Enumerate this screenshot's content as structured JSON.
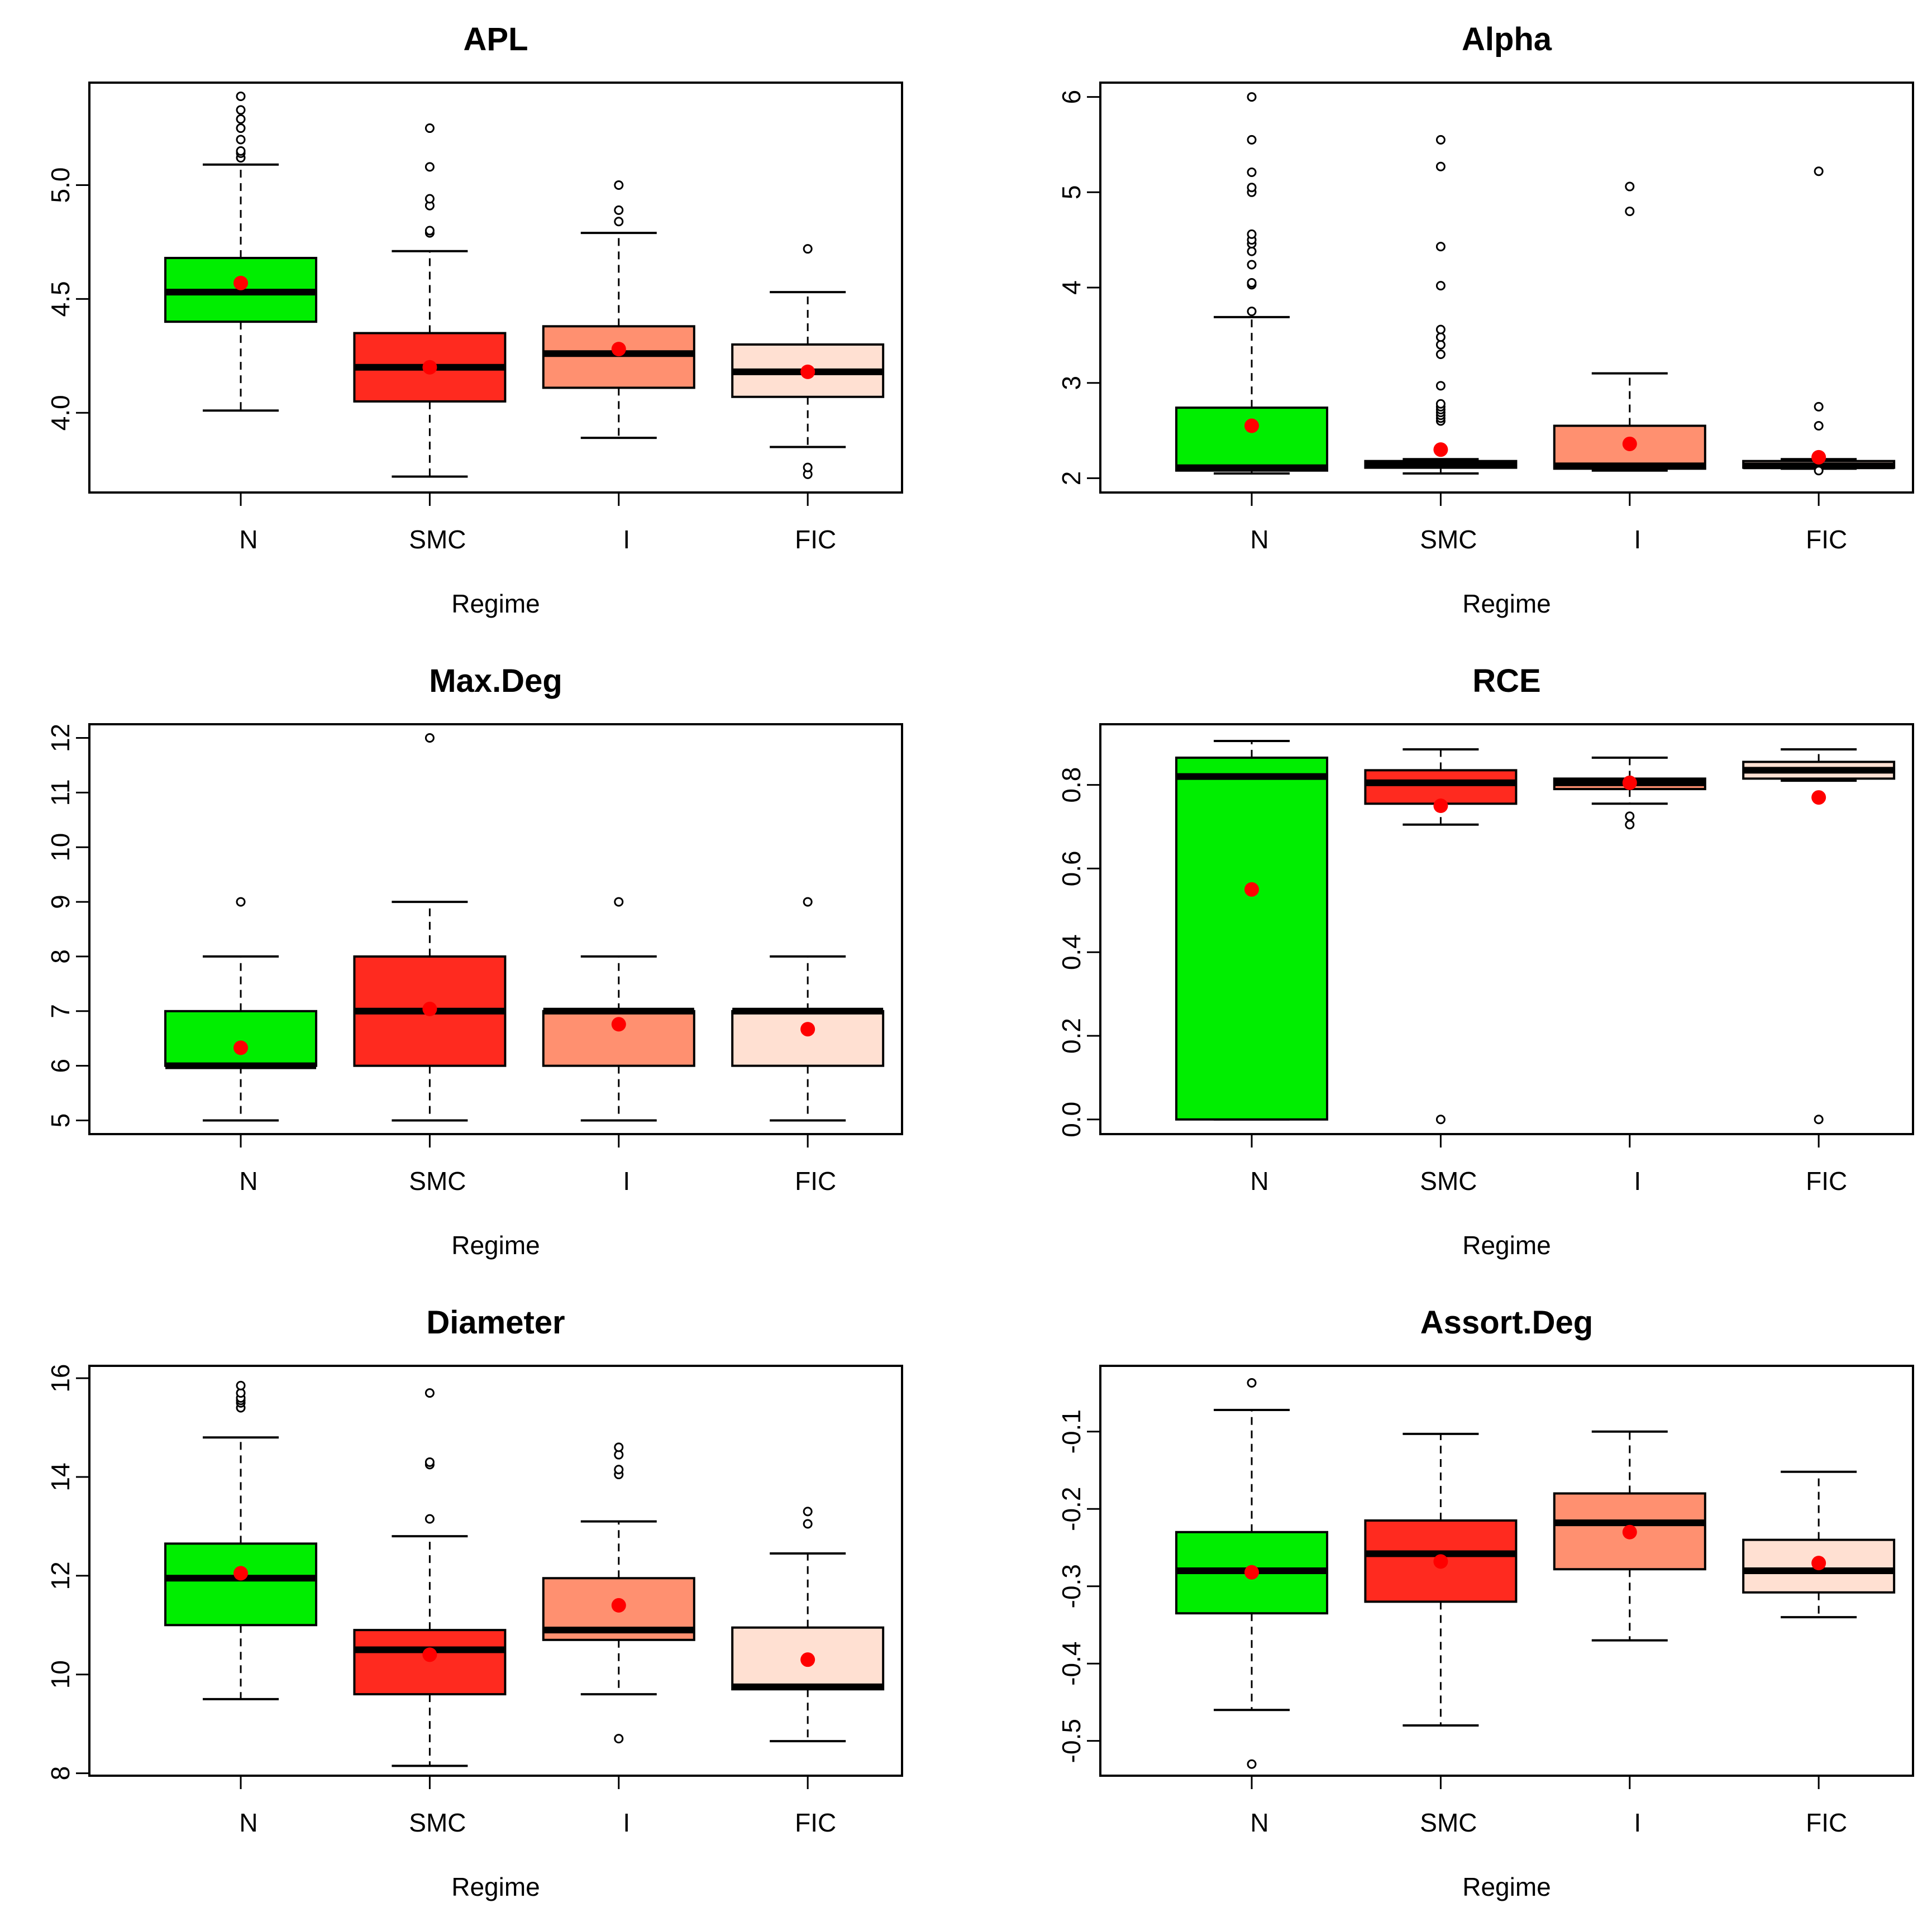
{
  "chart_data": [
    {
      "type": "box",
      "title": "APL",
      "xlabel": "Regime",
      "ylabel": "",
      "categories": [
        "N",
        "SMC",
        "I",
        "FIC"
      ],
      "ylim": [
        3.65,
        5.45
      ],
      "yticks": [
        {
          "v": 4.0,
          "label": "4.0"
        },
        {
          "v": 4.5,
          "label": "4.5"
        },
        {
          "v": 5.0,
          "label": "5.0"
        }
      ],
      "boxes": [
        {
          "min": 4.01,
          "q1": 4.4,
          "median": 4.53,
          "q3": 4.68,
          "max": 5.09,
          "mean": 4.57,
          "outliers": [
            5.12,
            5.14,
            5.15,
            5.2,
            5.25,
            5.29,
            5.33,
            5.39
          ]
        },
        {
          "min": 3.72,
          "q1": 4.05,
          "median": 4.2,
          "q3": 4.35,
          "max": 4.71,
          "mean": 4.2,
          "outliers": [
            4.79,
            4.8,
            4.91,
            4.94,
            5.08,
            5.25
          ]
        },
        {
          "min": 3.89,
          "q1": 4.11,
          "median": 4.26,
          "q3": 4.38,
          "max": 4.79,
          "mean": 4.28,
          "outliers": [
            4.84,
            4.89,
            5.0
          ]
        },
        {
          "min": 3.85,
          "q1": 4.07,
          "median": 4.18,
          "q3": 4.3,
          "max": 4.53,
          "mean": 4.18,
          "outliers": [
            3.73,
            3.76,
            4.72
          ]
        }
      ]
    },
    {
      "type": "box",
      "title": "Alpha",
      "xlabel": "Regime",
      "ylabel": "",
      "categories": [
        "N",
        "SMC",
        "I",
        "FIC"
      ],
      "ylim": [
        1.85,
        6.15
      ],
      "yticks": [
        {
          "v": 2,
          "label": "2"
        },
        {
          "v": 3,
          "label": "3"
        },
        {
          "v": 4,
          "label": "4"
        },
        {
          "v": 5,
          "label": "5"
        },
        {
          "v": 6,
          "label": "6"
        }
      ],
      "boxes": [
        {
          "min": 2.05,
          "q1": 2.08,
          "median": 2.11,
          "q3": 2.74,
          "max": 3.69,
          "mean": 2.55,
          "outliers": [
            3.75,
            4.03,
            4.05,
            4.24,
            4.38,
            4.46,
            4.5,
            4.56,
            5.0,
            5.05,
            5.21,
            5.55,
            6.0
          ]
        },
        {
          "min": 2.05,
          "q1": 2.11,
          "median": 2.14,
          "q3": 2.18,
          "max": 2.2,
          "mean": 2.3,
          "outliers": [
            2.6,
            2.63,
            2.66,
            2.69,
            2.72,
            2.75,
            2.78,
            2.97,
            3.3,
            3.4,
            3.48,
            3.56,
            4.02,
            4.43,
            5.27,
            5.55
          ]
        },
        {
          "min": 2.08,
          "q1": 2.1,
          "median": 2.13,
          "q3": 2.55,
          "max": 3.1,
          "mean": 2.36,
          "outliers": [
            4.8,
            5.06
          ]
        },
        {
          "min": 2.1,
          "q1": 2.11,
          "median": 2.13,
          "q3": 2.18,
          "max": 2.2,
          "mean": 2.22,
          "outliers": [
            2.08,
            2.55,
            2.75,
            5.22
          ]
        }
      ]
    },
    {
      "type": "box",
      "title": "Max.Deg",
      "xlabel": "Regime",
      "ylabel": "",
      "categories": [
        "N",
        "SMC",
        "I",
        "FIC"
      ],
      "ylim": [
        4.75,
        12.25
      ],
      "yticks": [
        {
          "v": 5,
          "label": "5"
        },
        {
          "v": 6,
          "label": "6"
        },
        {
          "v": 7,
          "label": "7"
        },
        {
          "v": 8,
          "label": "8"
        },
        {
          "v": 9,
          "label": "9"
        },
        {
          "v": 10,
          "label": "10"
        },
        {
          "v": 11,
          "label": "11"
        },
        {
          "v": 12,
          "label": "12"
        }
      ],
      "boxes": [
        {
          "min": 5,
          "q1": 6,
          "median": 6,
          "q3": 7,
          "max": 8,
          "mean": 6.33,
          "outliers": [
            9
          ]
        },
        {
          "min": 5,
          "q1": 6,
          "median": 7,
          "q3": 8,
          "max": 9,
          "mean": 7.04,
          "outliers": [
            12
          ]
        },
        {
          "min": 5,
          "q1": 6,
          "median": 7,
          "q3": 7,
          "max": 8,
          "mean": 6.76,
          "outliers": [
            9
          ]
        },
        {
          "min": 5,
          "q1": 6,
          "median": 7,
          "q3": 7,
          "max": 8,
          "mean": 6.67,
          "outliers": [
            9
          ]
        }
      ]
    },
    {
      "type": "box",
      "title": "RCE",
      "xlabel": "Regime",
      "ylabel": "",
      "categories": [
        "N",
        "SMC",
        "I",
        "FIC"
      ],
      "ylim": [
        -0.035,
        0.945
      ],
      "yticks": [
        {
          "v": 0.0,
          "label": "0.0"
        },
        {
          "v": 0.2,
          "label": "0.2"
        },
        {
          "v": 0.4,
          "label": "0.4"
        },
        {
          "v": 0.6,
          "label": "0.6"
        },
        {
          "v": 0.8,
          "label": "0.8"
        }
      ],
      "boxes": [
        {
          "min": 0.0,
          "q1": 0.0,
          "median": 0.82,
          "q3": 0.865,
          "max": 0.905,
          "mean": 0.55,
          "outliers": []
        },
        {
          "min": 0.705,
          "q1": 0.755,
          "median": 0.805,
          "q3": 0.835,
          "max": 0.885,
          "mean": 0.75,
          "outliers": [
            0.0
          ]
        },
        {
          "min": 0.755,
          "q1": 0.79,
          "median": 0.805,
          "q3": 0.815,
          "max": 0.865,
          "mean": 0.805,
          "outliers": [
            0.705,
            0.725
          ]
        },
        {
          "min": 0.81,
          "q1": 0.815,
          "median": 0.835,
          "q3": 0.855,
          "max": 0.885,
          "mean": 0.77,
          "outliers": [
            0.0
          ]
        }
      ]
    },
    {
      "type": "box",
      "title": "Diameter",
      "xlabel": "Regime",
      "ylabel": "",
      "categories": [
        "N",
        "SMC",
        "I",
        "FIC"
      ],
      "ylim": [
        7.95,
        16.25
      ],
      "yticks": [
        {
          "v": 8,
          "label": "8"
        },
        {
          "v": 10,
          "label": "10"
        },
        {
          "v": 12,
          "label": "12"
        },
        {
          "v": 14,
          "label": "14"
        },
        {
          "v": 16,
          "label": "16"
        }
      ],
      "boxes": [
        {
          "min": 9.5,
          "q1": 11.0,
          "median": 11.95,
          "q3": 12.65,
          "max": 14.8,
          "mean": 12.05,
          "outliers": [
            15.4,
            15.5,
            15.55,
            15.6,
            15.7,
            15.85
          ]
        },
        {
          "min": 8.15,
          "q1": 9.6,
          "median": 10.5,
          "q3": 10.9,
          "max": 12.8,
          "mean": 10.4,
          "outliers": [
            13.15,
            14.25,
            14.3,
            15.7
          ]
        },
        {
          "min": 9.6,
          "q1": 10.7,
          "median": 10.9,
          "q3": 11.95,
          "max": 13.1,
          "mean": 11.4,
          "outliers": [
            8.7,
            14.05,
            14.15,
            14.45,
            14.6
          ]
        },
        {
          "min": 8.65,
          "q1": 9.7,
          "median": 9.75,
          "q3": 10.95,
          "max": 12.45,
          "mean": 10.3,
          "outliers": [
            13.05,
            13.3
          ]
        }
      ]
    },
    {
      "type": "box",
      "title": "Assort.Deg",
      "xlabel": "Regime",
      "ylabel": "",
      "categories": [
        "N",
        "SMC",
        "I",
        "FIC"
      ],
      "ylim": [
        -0.545,
        -0.015
      ],
      "yticks": [
        {
          "v": -0.5,
          "label": "-0.5"
        },
        {
          "v": -0.4,
          "label": "-0.4"
        },
        {
          "v": -0.3,
          "label": "-0.3"
        },
        {
          "v": -0.2,
          "label": "-0.2"
        },
        {
          "v": -0.1,
          "label": "-0.1"
        }
      ],
      "boxes": [
        {
          "min": -0.46,
          "q1": -0.335,
          "median": -0.28,
          "q3": -0.23,
          "max": -0.072,
          "mean": -0.282,
          "outliers": [
            -0.53,
            -0.037
          ]
        },
        {
          "min": -0.48,
          "q1": -0.32,
          "median": -0.258,
          "q3": -0.215,
          "max": -0.103,
          "mean": -0.268,
          "outliers": []
        },
        {
          "min": -0.37,
          "q1": -0.278,
          "median": -0.218,
          "q3": -0.18,
          "max": -0.1,
          "mean": -0.23,
          "outliers": []
        },
        {
          "min": -0.34,
          "q1": -0.308,
          "median": -0.28,
          "q3": -0.24,
          "max": -0.152,
          "mean": -0.27,
          "outliers": []
        }
      ]
    }
  ],
  "colors": {
    "box_fills": [
      "#00ee00",
      "#ff2a1f",
      "#ff9070",
      "#ffe0d2"
    ],
    "mean_marker": "#ff0000",
    "stroke": "#000000"
  }
}
